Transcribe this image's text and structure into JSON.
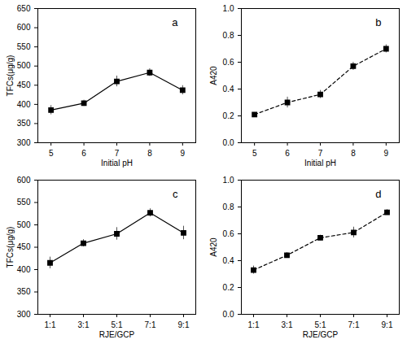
{
  "chart_data": [
    {
      "type": "line",
      "annotation": "a",
      "x_label": "Initial pH",
      "y_label": "TFCs(μg/g)",
      "x": [
        5,
        6,
        7,
        8,
        9
      ],
      "values": [
        385,
        403,
        460,
        483,
        437
      ],
      "errors": [
        12,
        8,
        14,
        10,
        12
      ],
      "xlim": [
        4.6,
        9.4
      ],
      "xticks": [
        5,
        6,
        7,
        8,
        9
      ],
      "ylim": [
        300,
        650
      ],
      "yticks": [
        300,
        350,
        400,
        450,
        500,
        550,
        600,
        650
      ],
      "color": "#000000",
      "marker": "square",
      "line_style": "solid",
      "grid": false
    },
    {
      "type": "line",
      "annotation": "b",
      "x_label": "Initial pH",
      "y_label": "A420",
      "x": [
        5,
        6,
        7,
        8,
        9
      ],
      "values": [
        0.21,
        0.3,
        0.36,
        0.57,
        0.7
      ],
      "errors": [
        0.015,
        0.04,
        0.03,
        0.03,
        0.03
      ],
      "xlim": [
        4.6,
        9.4
      ],
      "xticks": [
        5,
        6,
        7,
        8,
        9
      ],
      "ylim": [
        0,
        1
      ],
      "yticks": [
        {
          "value": 0,
          "label": "0.0"
        },
        0.2,
        0.4,
        0.6,
        0.8,
        {
          "value": 1,
          "label": "1.0"
        }
      ],
      "color": "#000000",
      "marker": "square",
      "line_style": "dashed",
      "grid": false
    },
    {
      "type": "line",
      "annotation": "c",
      "x_label": "RJE/GCP",
      "y_label": "TFCs(μg/g)",
      "categories": [
        "1:1",
        "3:1",
        "5:1",
        "7:1",
        "9:1"
      ],
      "values": [
        415,
        459,
        480,
        527,
        482
      ],
      "errors": [
        13,
        8,
        14,
        9,
        15
      ],
      "ylim": [
        300,
        600
      ],
      "yticks": [
        300,
        350,
        400,
        450,
        500,
        550,
        600
      ],
      "color": "#000000",
      "marker": "square",
      "line_style": "solid",
      "grid": false
    },
    {
      "type": "line",
      "annotation": "d",
      "x_label": "RJE/GCP",
      "y_label": "A420",
      "categories": [
        "1:1",
        "3:1",
        "5:1",
        "7:1",
        "9:1"
      ],
      "values": [
        0.33,
        0.44,
        0.57,
        0.61,
        0.76
      ],
      "errors": [
        0.03,
        0.02,
        0.02,
        0.04,
        0.02
      ],
      "ylim": [
        0,
        1
      ],
      "yticks": [
        {
          "value": 0,
          "label": "0.0"
        },
        0.2,
        0.4,
        0.6,
        0.8,
        {
          "value": 1,
          "label": "1.0"
        }
      ],
      "color": "#000000",
      "marker": "square",
      "line_style": "dashed",
      "grid": false
    }
  ]
}
